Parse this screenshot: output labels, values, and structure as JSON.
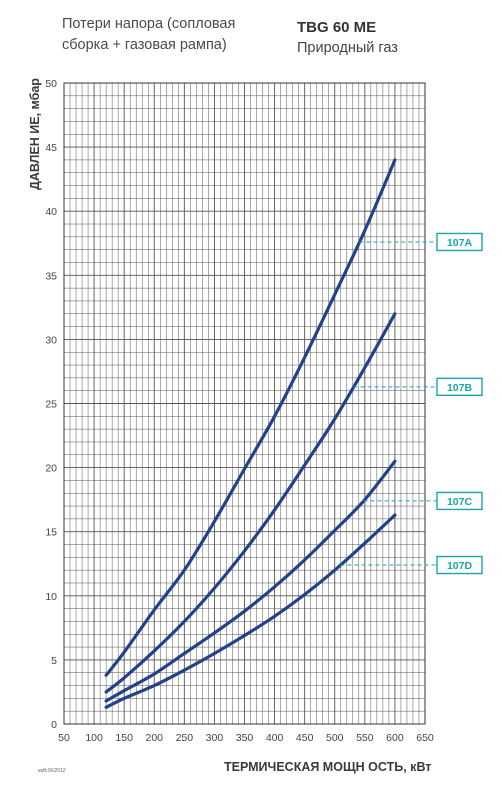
{
  "header": {
    "subtitle": "Потери напора (сопловая\nсборка + газовая рампа)",
    "model": "TBG 60 ME",
    "gas": "Природный газ"
  },
  "footer_note": "edit.06/2012",
  "colors": {
    "curve": "#23418a",
    "grid": "#555555",
    "tag": "#1ba3b0"
  },
  "chart_data": {
    "type": "line",
    "xlabel": "ТЕРМИЧЕСКАЯ МОЩН ОСТЬ, кВт",
    "ylabel": "ДАВЛЕН ИЕ, мбар",
    "xlim": [
      50,
      650
    ],
    "ylim": [
      0,
      50
    ],
    "xticks": [
      50,
      100,
      150,
      200,
      250,
      300,
      350,
      400,
      450,
      500,
      550,
      600,
      650
    ],
    "yticks": [
      0,
      5,
      10,
      15,
      20,
      25,
      30,
      35,
      40,
      45,
      50
    ],
    "grid": true,
    "series": [
      {
        "name": "107A",
        "x": [
          120,
          150,
          200,
          250,
          300,
          350,
          400,
          450,
          500,
          550,
          600
        ],
        "values": [
          3.8,
          5.6,
          8.9,
          12.0,
          15.8,
          19.9,
          24.0,
          28.6,
          33.5,
          38.5,
          44.0
        ]
      },
      {
        "name": "107B",
        "x": [
          120,
          150,
          200,
          250,
          300,
          350,
          400,
          450,
          500,
          550,
          600
        ],
        "values": [
          2.5,
          3.6,
          5.7,
          8.0,
          10.6,
          13.5,
          16.7,
          20.2,
          23.8,
          27.8,
          32.0
        ]
      },
      {
        "name": "107C",
        "x": [
          120,
          150,
          200,
          250,
          300,
          350,
          400,
          450,
          500,
          550,
          600
        ],
        "values": [
          1.8,
          2.6,
          3.9,
          5.5,
          7.1,
          8.8,
          10.7,
          12.8,
          15.1,
          17.5,
          20.5
        ]
      },
      {
        "name": "107D",
        "x": [
          120,
          150,
          200,
          250,
          300,
          350,
          400,
          450,
          500,
          550,
          600
        ],
        "values": [
          1.3,
          2.0,
          3.0,
          4.2,
          5.5,
          6.9,
          8.4,
          10.1,
          12.0,
          14.1,
          16.3
        ]
      }
    ],
    "tags": [
      {
        "label": "107A",
        "y": 37.6
      },
      {
        "label": "107B",
        "y": 26.3
      },
      {
        "label": "107C",
        "y": 17.4
      },
      {
        "label": "107D",
        "y": 12.4
      }
    ]
  }
}
